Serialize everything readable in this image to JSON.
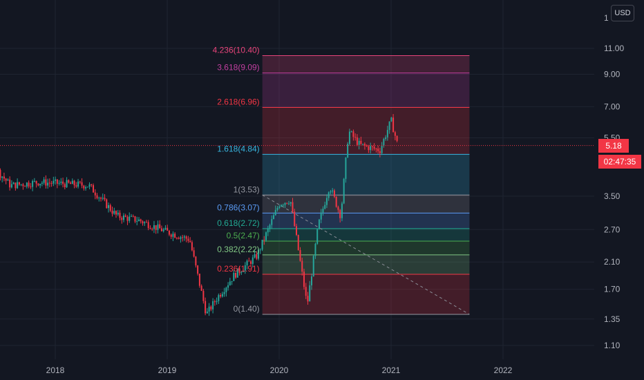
{
  "currency_button": "USD",
  "price_tag": "5.18",
  "countdown_tag": "02:47:35",
  "colors": {
    "background": "#131722",
    "up": "#26a69a",
    "down": "#f23645",
    "last_price": "#f23645"
  },
  "chart_data": {
    "type": "candlestick",
    "scale": "log",
    "title": "",
    "x_ticks": [
      "2018",
      "2019",
      "2020",
      "2021",
      "2022"
    ],
    "y_ticks": [
      "11.00",
      "9.00",
      "7.00",
      "5.50",
      "3.50",
      "2.70",
      "2.10",
      "1.70",
      "1.35",
      "1.10"
    ],
    "y_top_clipped_label": "1",
    "last_price": 5.18,
    "price_series": {
      "name": "",
      "x": [
        2017.0,
        2017.3,
        2017.6,
        2017.85,
        2018.1,
        2018.3,
        2018.55,
        2018.75,
        2019.0,
        2019.2,
        2019.35,
        2019.45,
        2019.6,
        2019.8,
        2020.0,
        2020.1,
        2020.25,
        2020.35,
        2020.45,
        2020.55,
        2020.62,
        2020.72,
        2020.9,
        2021.0,
        2021.07
      ],
      "y": [
        5.0,
        5.1,
        3.8,
        3.9,
        3.85,
        3.8,
        3.0,
        2.9,
        2.65,
        2.5,
        1.4,
        1.6,
        1.9,
        2.2,
        3.3,
        3.4,
        1.5,
        2.8,
        3.8,
        3.0,
        5.8,
        5.2,
        5.0,
        6.3,
        5.0
      ]
    },
    "fibonacci_extension": {
      "x_start": 2019.85,
      "x_end": 2021.7,
      "trend_line": {
        "from": [
          2019.85,
          3.53
        ],
        "to": [
          2021.7,
          1.4
        ]
      },
      "levels": [
        {
          "ratio": "4.236",
          "price": "10.40",
          "label": "4.236(10.40)",
          "color": "#e8447a"
        },
        {
          "ratio": "3.618",
          "price": "9.09",
          "label": "3.618(9.09)",
          "color": "#c23fa0"
        },
        {
          "ratio": "2.618",
          "price": "6.96",
          "label": "2.618(6.96)",
          "color": "#f23645"
        },
        {
          "ratio": "1.618",
          "price": "4.84",
          "label": "1.618(4.84)",
          "color": "#38b6e0"
        },
        {
          "ratio": "1",
          "price": "3.53",
          "label": "1(3.53)",
          "color": "#9598a1"
        },
        {
          "ratio": "0.786",
          "price": "3.07",
          "label": "0.786(3.07)",
          "color": "#5b9cf6"
        },
        {
          "ratio": "0.618",
          "price": "2.72",
          "label": "0.618(2.72)",
          "color": "#22ab94"
        },
        {
          "ratio": "0.5",
          "price": "2.47",
          "label": "0.5(2.47)",
          "color": "#4caf50"
        },
        {
          "ratio": "0.382",
          "price": "2.22",
          "label": "0.382(2.22)",
          "color": "#81c784"
        },
        {
          "ratio": "0.236",
          "price": "1.91",
          "label": "0.236(1.91)",
          "color": "#f23645"
        },
        {
          "ratio": "0",
          "price": "1.40",
          "label": "0(1.40)",
          "color": "#9598a1"
        }
      ]
    }
  }
}
